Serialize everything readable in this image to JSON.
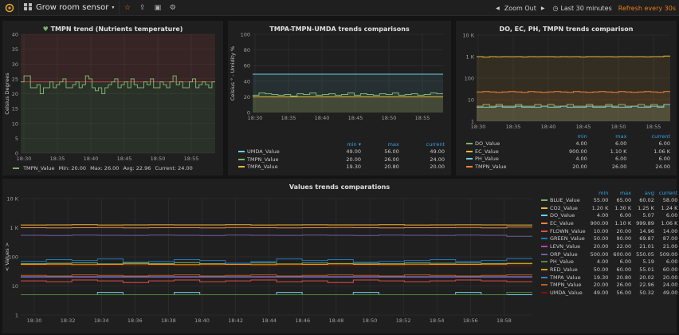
{
  "navbar": {
    "title": "Grow room sensor",
    "zoom_out": "Zoom Out",
    "time_range": "Last 30 minutes",
    "refresh": "Refresh every 30s"
  },
  "panels": {
    "tmpn": {
      "title": "TMPN trend (Nutrients temperature)",
      "ylabel": "Celsius Degrees",
      "legend": {
        "name": "TMPN_Value",
        "min": "Min: 20.00",
        "max": "Max: 26.00",
        "avg": "Avg: 22.96",
        "current": "Current: 24.00"
      }
    },
    "tmpa": {
      "title": "TMPA-TMPN-UMDA trends comparisons",
      "ylabel": "Celsius ° - Umidity %",
      "headers": {
        "min": "min",
        "max": "max",
        "current": "current"
      },
      "rows": [
        {
          "name": "UMDA_Value",
          "min": "49.00",
          "max": "56.00",
          "current": "49.00",
          "color": "#6ed0e0"
        },
        {
          "name": "TMPN_Value",
          "min": "20.00",
          "max": "26.00",
          "current": "24.00",
          "color": "#7eb26d"
        },
        {
          "name": "TMPA_Value",
          "min": "19.30",
          "max": "20.80",
          "current": "20.00",
          "color": "#eab839"
        }
      ]
    },
    "do": {
      "title": "DO, EC, PH, TMPN trends comparison",
      "headers": {
        "min": "min",
        "max": "max",
        "current": "current"
      },
      "rows": [
        {
          "name": "DO_Value",
          "min": "4.00",
          "max": "6.00",
          "current": "6.00",
          "color": "#7eb26d"
        },
        {
          "name": "EC_Value",
          "min": "900.00",
          "max": "1.10 K",
          "current": "1.06 K",
          "color": "#eab839"
        },
        {
          "name": "PH_Value",
          "min": "4.00",
          "max": "6.00",
          "current": "6.00",
          "color": "#6ed0e0"
        },
        {
          "name": "TMPN_Value",
          "min": "20.00",
          "max": "26.00",
          "current": "24.00",
          "color": "#ef843c"
        }
      ]
    },
    "values": {
      "title": "Values trends comparations",
      "ylabel": "< Values >",
      "headers": {
        "min": "min",
        "max": "max",
        "avg": "avg",
        "current": "current"
      },
      "rows": [
        {
          "name": "BLUE_Value",
          "min": "55.00",
          "max": "65.00",
          "avg": "60.02",
          "current": "58.00",
          "color": "#7eb26d"
        },
        {
          "name": "CO2_Value",
          "min": "1.20 K",
          "max": "1.30 K",
          "avg": "1.25 K",
          "current": "1.24 K",
          "color": "#eab839"
        },
        {
          "name": "DO_Value",
          "min": "4.00",
          "max": "6.00",
          "avg": "5.07",
          "current": "6.00",
          "color": "#6ed0e0"
        },
        {
          "name": "EC_Value",
          "min": "900.00",
          "max": "1.10 K",
          "avg": "999.89",
          "current": "1.06 K",
          "color": "#ef843c"
        },
        {
          "name": "FLOWN_Value",
          "min": "10.00",
          "max": "20.00",
          "avg": "14.96",
          "current": "14.00",
          "color": "#e24d42"
        },
        {
          "name": "GREEN_Value",
          "min": "50.00",
          "max": "90.00",
          "avg": "69.87",
          "current": "87.00",
          "color": "#1f78c1"
        },
        {
          "name": "LEVN_Value",
          "min": "20.00",
          "max": "22.00",
          "avg": "21.01",
          "current": "21.00",
          "color": "#ba43a9"
        },
        {
          "name": "ORP_Value",
          "min": "500.00",
          "max": "600.00",
          "avg": "550.05",
          "current": "509.00",
          "color": "#705da0"
        },
        {
          "name": "PH_Value",
          "min": "4.00",
          "max": "6.00",
          "avg": "5.19",
          "current": "6.00",
          "color": "#508642"
        },
        {
          "name": "RED_Value",
          "min": "50.00",
          "max": "60.00",
          "avg": "55.01",
          "current": "60.00",
          "color": "#cca300"
        },
        {
          "name": "TMPA_Value",
          "min": "19.30",
          "max": "20.80",
          "avg": "20.02",
          "current": "20.00",
          "color": "#447ebc"
        },
        {
          "name": "TMPN_Value",
          "min": "20.00",
          "max": "26.00",
          "avg": "22.96",
          "current": "24.00",
          "color": "#c15c17"
        },
        {
          "name": "UMDA_Value",
          "min": "49.00",
          "max": "56.00",
          "avg": "50.32",
          "current": "49.00",
          "color": "#890f02"
        }
      ]
    }
  },
  "chart_data": [
    {
      "type": "line",
      "title": "TMPN trend (Nutrients temperature)",
      "ylabel": "Celsius Degrees",
      "x_ticks": [
        "18:30",
        "18:35",
        "18:40",
        "18:45",
        "18:50",
        "18:55"
      ],
      "ylim": [
        0,
        40
      ],
      "y_ticks": [
        0,
        5,
        10,
        15,
        20,
        25,
        30,
        35,
        40
      ],
      "thresholds": [
        24
      ],
      "series": [
        {
          "name": "TMPN_Value",
          "values": [
            24,
            26,
            26,
            22,
            22,
            23,
            20,
            22,
            22,
            24,
            22,
            23,
            24,
            25,
            22,
            22,
            23,
            24,
            22,
            23,
            26,
            25,
            22,
            21,
            22,
            20,
            22,
            23,
            24,
            25,
            22,
            23,
            24,
            22,
            25,
            23,
            22,
            22,
            24,
            23,
            25,
            22,
            22,
            24,
            23,
            22,
            24,
            26,
            23,
            24,
            22,
            22,
            24,
            25,
            22,
            23,
            24,
            23,
            22,
            24
          ]
        }
      ]
    },
    {
      "type": "line",
      "title": "TMPA-TMPN-UMDA trends comparisons",
      "ylabel": "Celsius ° - Umidity %",
      "x_ticks": [
        "18:30",
        "18:35",
        "18:40",
        "18:45",
        "18:50",
        "18:55"
      ],
      "ylim": [
        0,
        100
      ],
      "y_ticks": [
        0,
        20,
        40,
        60,
        80,
        100
      ],
      "series": [
        {
          "name": "UMDA_Value",
          "values": [
            49,
            49,
            49,
            49,
            49,
            49,
            49,
            49,
            49,
            49,
            49,
            49,
            49,
            49,
            49,
            49,
            49,
            49,
            49,
            49,
            49,
            49,
            49,
            49,
            49,
            49,
            49,
            49,
            49,
            49
          ]
        },
        {
          "name": "TMPN_Value",
          "values": [
            22,
            25,
            24,
            23,
            22,
            23,
            21,
            24,
            23,
            25,
            22,
            23,
            24,
            22,
            23,
            25,
            22,
            24,
            23,
            22,
            24,
            23,
            25,
            22,
            23,
            24,
            22,
            23,
            25,
            24
          ]
        },
        {
          "name": "TMPA_Value",
          "values": [
            20,
            20,
            20,
            20,
            20,
            20,
            20,
            20,
            20,
            20,
            20,
            20,
            20,
            20,
            20,
            20,
            20,
            20,
            20,
            20,
            20,
            20,
            20,
            20,
            20,
            20,
            20,
            20,
            20,
            20
          ]
        }
      ]
    },
    {
      "type": "line",
      "title": "DO, EC, PH, TMPN trends comparison",
      "x_ticks": [
        "18:30",
        "18:35",
        "18:40",
        "18:45",
        "18:50",
        "18:55"
      ],
      "y_scale": "log",
      "ylim": [
        1,
        10000
      ],
      "y_ticks": [
        "1",
        "10",
        "100",
        "1 K",
        "10 K"
      ],
      "series": [
        {
          "name": "DO_Value",
          "values": [
            5,
            6,
            5,
            6,
            5,
            5,
            6,
            5,
            5,
            6,
            5,
            6,
            5,
            5,
            6,
            5,
            5,
            6,
            5,
            5,
            6,
            5,
            6,
            5,
            5,
            6,
            5,
            6,
            5,
            6
          ]
        },
        {
          "name": "EC_Value",
          "values": [
            1000,
            950,
            1000,
            980,
            1000,
            990,
            1000,
            970,
            1000,
            990,
            1000,
            1000,
            980,
            1000,
            990,
            1000,
            970,
            1000,
            1000,
            990,
            1000,
            980,
            1000,
            1000,
            990,
            1000,
            980,
            1000,
            1000,
            1060
          ]
        },
        {
          "name": "PH_Value",
          "values": [
            4.5,
            4.5,
            4.5,
            5,
            4.5,
            4.5,
            5,
            4.5,
            4.5,
            4.5,
            5,
            4.5,
            4.5,
            5,
            4.5,
            4.5,
            4.5,
            5,
            4.5,
            4.5,
            5,
            4.5,
            4.5,
            4.5,
            5,
            4.5,
            4.5,
            5,
            4.5,
            6
          ]
        },
        {
          "name": "TMPN_Value",
          "values": [
            23,
            24,
            23,
            22,
            23,
            24,
            23,
            22,
            24,
            23,
            22,
            23,
            24,
            23,
            22,
            24,
            23,
            22,
            23,
            24,
            23,
            22,
            24,
            23,
            22,
            23,
            24,
            23,
            22,
            24
          ]
        }
      ]
    },
    {
      "type": "line",
      "title": "Values trends comparations",
      "ylabel": "< Values >",
      "x_ticks": [
        "18:30",
        "18:32",
        "18:34",
        "18:36",
        "18:38",
        "18:40",
        "18:42",
        "18:44",
        "18:46",
        "18:48",
        "18:50",
        "18:52",
        "18:54",
        "18:56",
        "18:58"
      ],
      "y_scale": "log",
      "ylim": [
        1,
        10000
      ],
      "y_ticks": [
        "1",
        "10",
        "100",
        "1 K",
        "10 K"
      ],
      "series": [
        {
          "name": "BLUE_Value",
          "values": [
            58,
            60,
            62,
            57,
            61,
            59,
            63,
            58,
            60,
            62,
            57,
            61,
            59,
            60,
            58,
            62,
            60,
            61,
            59,
            58
          ]
        },
        {
          "name": "CO2_Value",
          "values": [
            1240,
            1250,
            1260,
            1240,
            1250,
            1255,
            1245,
            1250,
            1260,
            1240,
            1250,
            1255,
            1245,
            1250,
            1260,
            1240,
            1250,
            1255,
            1245,
            1240
          ]
        },
        {
          "name": "DO_Value",
          "values": [
            5,
            5,
            5,
            6,
            5,
            5,
            6,
            5,
            5,
            5,
            6,
            5,
            5,
            6,
            5,
            5,
            5,
            6,
            5,
            5
          ]
        },
        {
          "name": "EC_Value",
          "values": [
            1000,
            990,
            1000,
            1010,
            990,
            1000,
            1000,
            990,
            1010,
            1000,
            990,
            1000,
            1010,
            1000,
            990,
            1000,
            1000,
            1010,
            990,
            1060
          ]
        },
        {
          "name": "FLOWN_Value",
          "values": [
            15,
            14,
            16,
            15,
            13,
            15,
            16,
            14,
            15,
            16,
            14,
            15,
            13,
            16,
            15,
            14,
            15,
            16,
            15,
            14
          ]
        },
        {
          "name": "GREEN_Value",
          "values": [
            70,
            80,
            75,
            85,
            65,
            70,
            80,
            75,
            60,
            70,
            85,
            75,
            80,
            65,
            70,
            75,
            80,
            70,
            75,
            87
          ]
        },
        {
          "name": "LEVN_Value",
          "values": [
            21,
            21,
            21,
            21,
            21,
            21,
            21,
            21,
            21,
            21,
            21,
            21,
            21,
            21,
            21,
            21,
            21,
            21,
            21,
            21
          ]
        },
        {
          "name": "ORP_Value",
          "values": [
            550,
            540,
            560,
            550,
            545,
            555,
            550,
            540,
            560,
            550,
            545,
            555,
            550,
            540,
            560,
            550,
            545,
            555,
            550,
            509
          ]
        },
        {
          "name": "PH_Value",
          "values": [
            5,
            5,
            5,
            5,
            5,
            5,
            5,
            5,
            5,
            5,
            5,
            5,
            5,
            5,
            5,
            5,
            5,
            5,
            5,
            6
          ]
        },
        {
          "name": "RED_Value",
          "values": [
            55,
            56,
            54,
            55,
            57,
            55,
            54,
            56,
            55,
            54,
            56,
            55,
            57,
            55,
            54,
            56,
            55,
            55,
            56,
            60
          ]
        },
        {
          "name": "TMPA_Value",
          "values": [
            20,
            20,
            20,
            20,
            20,
            20,
            20,
            20,
            20,
            20,
            20,
            20,
            20,
            20,
            20,
            20,
            20,
            20,
            20,
            20
          ]
        },
        {
          "name": "TMPN_Value",
          "values": [
            23,
            22,
            24,
            23,
            22,
            23,
            24,
            22,
            23,
            24,
            22,
            23,
            24,
            23,
            22,
            24,
            23,
            22,
            23,
            24
          ]
        },
        {
          "name": "UMDA_Value",
          "values": [
            50,
            50,
            51,
            50,
            50,
            51,
            50,
            50,
            51,
            50,
            50,
            51,
            50,
            50,
            51,
            50,
            50,
            51,
            50,
            49
          ]
        }
      ]
    }
  ]
}
